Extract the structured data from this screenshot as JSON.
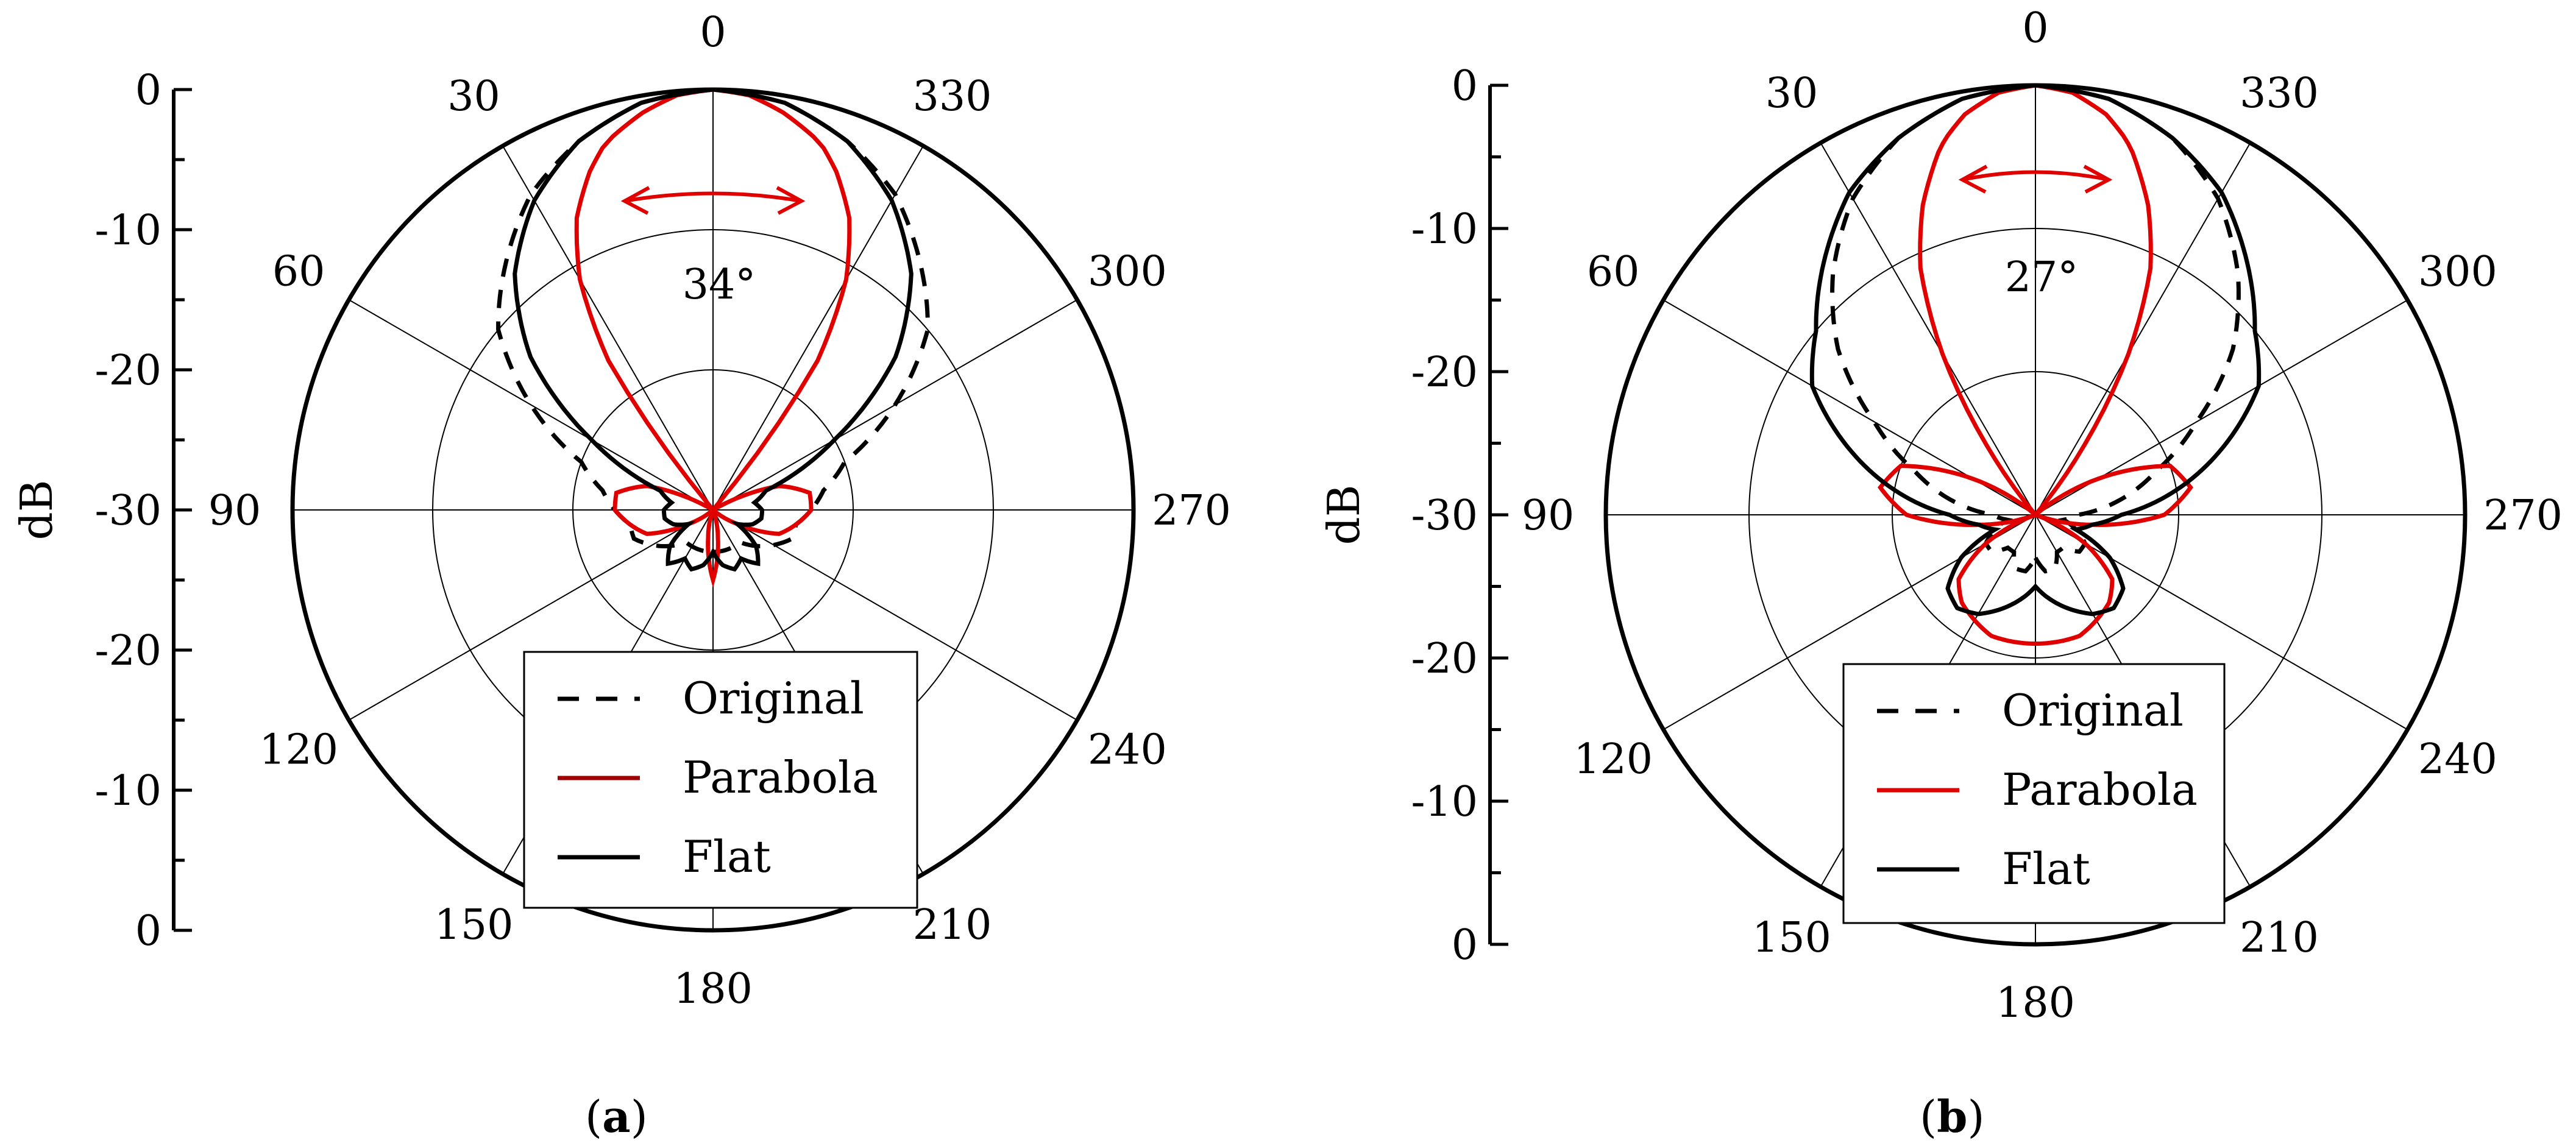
{
  "figure": {
    "panels": [
      {
        "caption_open": "(",
        "caption_letter": "a",
        "caption_close": ")",
        "beamwidth_label": "34°",
        "scale_label": "dB",
        "scale_ticks": [
          "0",
          "-10",
          "-20",
          "-30",
          "-20",
          "-10",
          "0"
        ],
        "legend": [
          {
            "label": "Original",
            "color": "#000000",
            "dash": true
          },
          {
            "label": "Parabola",
            "color": "#a00000",
            "dash": false
          },
          {
            "label": "Flat",
            "color": "#000000",
            "dash": false
          }
        ]
      },
      {
        "caption_open": "(",
        "caption_letter": "b",
        "caption_close": ")",
        "beamwidth_label": "27°",
        "scale_label": "dB",
        "scale_ticks": [
          "0",
          "-10",
          "-20",
          "-30",
          "-20",
          "-10",
          "0"
        ],
        "legend": [
          {
            "label": "Original",
            "color": "#000000",
            "dash": true
          },
          {
            "label": "Parabola",
            "color": "#e00000",
            "dash": false
          },
          {
            "label": "Flat",
            "color": "#000000",
            "dash": false
          }
        ]
      }
    ]
  },
  "chart_data": [
    {
      "type": "polar",
      "angle_ticks": [
        "0",
        "30",
        "60",
        "90",
        "120",
        "150",
        "180",
        "210",
        "240",
        "270",
        "300",
        "330"
      ],
      "angle_direction": "counterclockwise",
      "r_range_db": [
        -30,
        0
      ],
      "r_ticks_db": [
        0,
        -10,
        -20,
        -30
      ],
      "grid": true,
      "legend_position": "bottom",
      "annotation": "34°",
      "series": [
        {
          "name": "Original",
          "style": "dashed",
          "color": "#000000",
          "angle_deg": [
            0,
            10,
            20,
            30,
            40,
            50,
            60,
            70,
            80,
            90,
            100,
            110,
            120,
            130,
            140,
            150,
            160,
            170,
            180
          ],
          "gain_db": [
            0,
            -0.5,
            -2,
            -4,
            -7,
            -10,
            -15,
            -20,
            -22,
            -23,
            -24,
            -24,
            -25,
            -26,
            -27,
            -27,
            -27,
            -27,
            -27
          ]
        },
        {
          "name": "Parabola",
          "style": "solid",
          "color": "#e00000",
          "angle_deg": [
            0,
            5,
            10,
            15,
            17,
            20,
            25,
            30,
            35,
            40,
            50,
            60,
            70,
            80,
            90,
            100,
            110,
            120,
            130,
            140,
            150,
            160,
            170,
            180
          ],
          "gain_db": [
            0,
            -0.3,
            -1.2,
            -2.4,
            -3,
            -4.3,
            -7,
            -11,
            -17,
            -30,
            -30,
            -30,
            -25,
            -23,
            -23,
            -24,
            -25,
            -28,
            -30,
            -30,
            -30,
            -30,
            -28,
            -25
          ]
        },
        {
          "name": "Flat",
          "style": "solid",
          "color": "#000000",
          "angle_deg": [
            0,
            10,
            20,
            30,
            40,
            50,
            60,
            70,
            80,
            90,
            100,
            110,
            120,
            130,
            140,
            150,
            160,
            170,
            180
          ],
          "gain_db": [
            0,
            -0.5,
            -2,
            -4.5,
            -8,
            -13,
            -20,
            -26,
            -27,
            -26.5,
            -26.5,
            -27,
            -28,
            -26,
            -25,
            -26,
            -25.5,
            -26,
            -27
          ]
        }
      ]
    },
    {
      "type": "polar",
      "angle_ticks": [
        "0",
        "30",
        "60",
        "90",
        "120",
        "150",
        "180",
        "210",
        "240",
        "270",
        "300",
        "330"
      ],
      "angle_direction": "counterclockwise",
      "r_range_db": [
        -30,
        0
      ],
      "r_ticks_db": [
        0,
        -10,
        -20,
        -30
      ],
      "grid": true,
      "legend_position": "bottom",
      "annotation": "27°",
      "series": [
        {
          "name": "Original",
          "style": "dashed",
          "color": "#000000",
          "angle_deg": [
            0,
            10,
            20,
            30,
            40,
            50,
            60,
            70,
            80,
            90,
            100,
            110,
            120,
            130,
            140,
            150,
            160,
            170,
            180
          ],
          "gain_db": [
            0,
            -0.5,
            -2,
            -4.5,
            -8,
            -12,
            -17,
            -21,
            -24,
            -27,
            -28,
            -27,
            -26,
            -26,
            -27,
            -27,
            -26,
            -26,
            -27
          ]
        },
        {
          "name": "Parabola",
          "style": "solid",
          "color": "#e00000",
          "angle_deg": [
            0,
            5,
            10,
            13.5,
            15,
            20,
            25,
            30,
            35,
            40,
            50,
            60,
            70,
            80,
            90,
            100,
            110,
            120,
            130,
            140,
            150,
            160,
            170,
            180
          ],
          "gain_db": [
            0,
            -0.4,
            -1.6,
            -3,
            -3.8,
            -7,
            -11,
            -17,
            -24,
            -30,
            -30,
            -25,
            -20,
            -19,
            -21,
            -26,
            -30,
            -26,
            -23,
            -22,
            -21.5,
            -21,
            -21,
            -21
          ]
        },
        {
          "name": "Flat",
          "style": "solid",
          "color": "#000000",
          "angle_deg": [
            0,
            10,
            20,
            30,
            40,
            50,
            60,
            70,
            80,
            90,
            100,
            110,
            120,
            130,
            140,
            150,
            160,
            170,
            180
          ],
          "gain_db": [
            0,
            -0.5,
            -2,
            -4,
            -7,
            -10,
            -12,
            -16,
            -20,
            -24,
            -26,
            -27,
            -24,
            -22,
            -21.5,
            -22,
            -23,
            -24,
            -25
          ]
        }
      ]
    }
  ]
}
